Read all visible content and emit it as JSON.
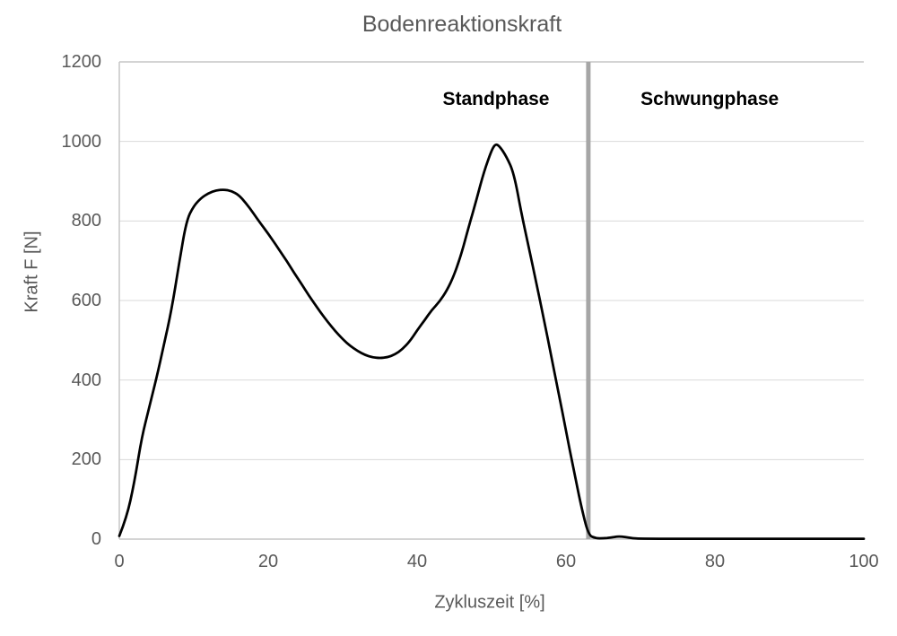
{
  "chart_data": {
    "type": "line",
    "title": "Bodenreaktionskraft",
    "xlabel": "Zykluszeit [%]",
    "ylabel": "Kraft F [N]",
    "xlim": [
      0,
      100
    ],
    "ylim": [
      0,
      1200
    ],
    "xticks": [
      0,
      20,
      40,
      60,
      80,
      100
    ],
    "yticks": [
      0,
      200,
      400,
      600,
      800,
      1000,
      1200
    ],
    "grid": "horizontal-only",
    "legend": "none",
    "series": [
      {
        "name": "Bodenreaktionskraft",
        "color": "#000000",
        "stroke_width": 2.75,
        "x": [
          0,
          1,
          2,
          3,
          4,
          5,
          6,
          7,
          8,
          9,
          10,
          11,
          12,
          13,
          14,
          15,
          16,
          17,
          18,
          19,
          20,
          21,
          22,
          23,
          24,
          25,
          26,
          27,
          28,
          29,
          30,
          31,
          32,
          33,
          34,
          35,
          36,
          37,
          38,
          39,
          40,
          41,
          42,
          43,
          44,
          45,
          46,
          47,
          48,
          49,
          50,
          50.5,
          51,
          52,
          53,
          54,
          55,
          56,
          57,
          58,
          59,
          60,
          61,
          62,
          63,
          64,
          65,
          66,
          67,
          68,
          69,
          70,
          75,
          80,
          85,
          90,
          95,
          100
        ],
        "y": [
          8,
          55,
          140,
          255,
          330,
          405,
          490,
          575,
          690,
          800,
          838,
          858,
          870,
          877,
          879,
          876,
          866,
          845,
          820,
          793,
          768,
          741,
          713,
          684,
          655,
          626,
          598,
          571,
          546,
          523,
          503,
          486,
          473,
          463,
          457,
          455,
          457,
          464,
          477,
          497,
          525,
          550,
          577,
          597,
          625,
          665,
          720,
          790,
          855,
          925,
          978,
          993,
          990,
          962,
          920,
          820,
          733,
          645,
          555,
          462,
          368,
          272,
          178,
          85,
          10,
          2,
          2,
          4,
          7,
          5,
          2,
          1,
          1,
          1,
          1,
          1,
          1,
          1
        ]
      }
    ],
    "annotations": [
      {
        "label": "Standphase",
        "x": 50.6,
        "y": 1105
      },
      {
        "label": "Schwungphase",
        "x": 79.3,
        "y": 1105
      }
    ],
    "phase_divider": {
      "x": 63,
      "color": "#a6a6a6",
      "width": 5
    },
    "key_points": {
      "first_peak": {
        "x": 14,
        "y": 880
      },
      "valley": {
        "x": 35,
        "y": 455
      },
      "second_peak": {
        "x": 50.5,
        "y": 995
      },
      "stance_to_swing_transition_percent": 63
    }
  },
  "colors": {
    "text": "#595959",
    "annotation_text": "#000000",
    "gridline": "#d9d9d9",
    "axis_line": "#c6c6c6",
    "background": "#ffffff"
  }
}
